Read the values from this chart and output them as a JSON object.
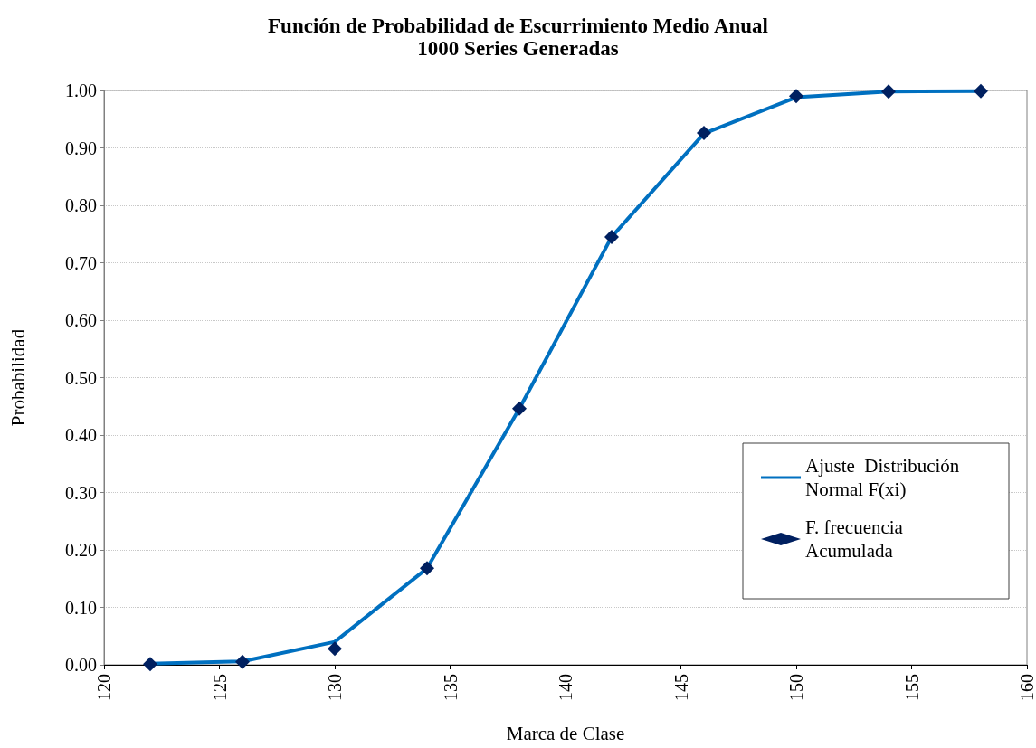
{
  "chart_data": {
    "type": "line",
    "title": "Función de Probabilidad de Escurrimiento Medio Anual",
    "subtitle": "1000 Series Generadas",
    "xlabel": "Marca de Clase",
    "ylabel": "Probabilidad",
    "x": [
      122,
      126,
      130,
      134,
      138,
      142,
      146,
      150,
      154,
      158
    ],
    "series": [
      {
        "name": "Ajuste  Distribución Normal F(xi)",
        "color": "#0070c0",
        "marker": "none",
        "line_style": "solid",
        "values": [
          0.002,
          0.006,
          0.04,
          0.168,
          0.446,
          0.745,
          0.925,
          0.988,
          0.998,
          0.999
        ]
      },
      {
        "name": "F. frecuencia Acumulada",
        "type": "scatter",
        "color": "#002060",
        "marker": "diamond",
        "values": [
          0.001,
          0.005,
          0.028,
          0.168,
          0.446,
          0.745,
          0.926,
          0.99,
          0.998,
          0.999
        ]
      }
    ],
    "xlim": [
      120,
      160
    ],
    "xticks": [
      120,
      125,
      130,
      135,
      140,
      145,
      150,
      155,
      160
    ],
    "ylim": [
      0,
      1
    ],
    "yticks": [
      {
        "value": 0,
        "label": "0.00"
      },
      {
        "value": 0.1,
        "label": "0.10"
      },
      {
        "value": 0.2,
        "label": "0.20"
      },
      {
        "value": 0.3,
        "label": "0.30"
      },
      {
        "value": 0.4,
        "label": "0.40"
      },
      {
        "value": 0.5,
        "label": "0.50"
      },
      {
        "value": 0.6,
        "label": "0.60"
      },
      {
        "value": 0.7,
        "label": "0.70"
      },
      {
        "value": 0.8,
        "label": "0.80"
      },
      {
        "value": 0.9,
        "label": "0.90"
      },
      {
        "value": 1,
        "label": "1.00"
      }
    ],
    "grid": "y",
    "legend": "bottom right"
  }
}
